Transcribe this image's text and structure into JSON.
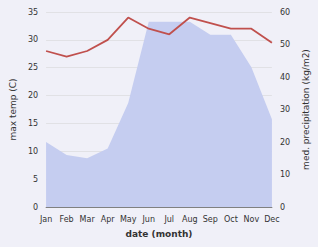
{
  "chart_data": {
    "type": "line",
    "categories": [
      "Jan",
      "Feb",
      "Mar",
      "Apr",
      "May",
      "Jun",
      "Jul",
      "Aug",
      "Sep",
      "Oct",
      "Nov",
      "Dec"
    ],
    "series": [
      {
        "type": "area",
        "color": "#c5cdf0",
        "axis": "y2",
        "values": [
          20,
          16,
          15,
          18,
          32,
          57,
          57,
          57,
          53,
          53,
          43,
          27
        ]
      },
      {
        "type": "line",
        "color": "#c0504d",
        "values": [
          28,
          27,
          28,
          30,
          34,
          32,
          31,
          34,
          33,
          32,
          32,
          29.5
        ]
      }
    ],
    "xlabel": "date (month)",
    "ylabel": "max temp (C)",
    "y2label": "med. precipitation (kg/m2)",
    "ylim": [
      0,
      35
    ],
    "yticks": [
      0,
      5,
      10,
      15,
      20,
      25,
      30,
      35
    ],
    "y2lim": [
      0,
      60
    ],
    "y2ticks": [
      0,
      10,
      20,
      30,
      40,
      50,
      60
    ],
    "grid": true
  }
}
